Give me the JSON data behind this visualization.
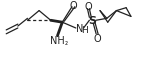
{
  "bg_color": "#ffffff",
  "line_color": "#222222",
  "lw": 0.9,
  "figsize": [
    1.42,
    0.58
  ],
  "dpi": 100,
  "xlim": [
    0,
    142
  ],
  "ylim": [
    0,
    58
  ]
}
